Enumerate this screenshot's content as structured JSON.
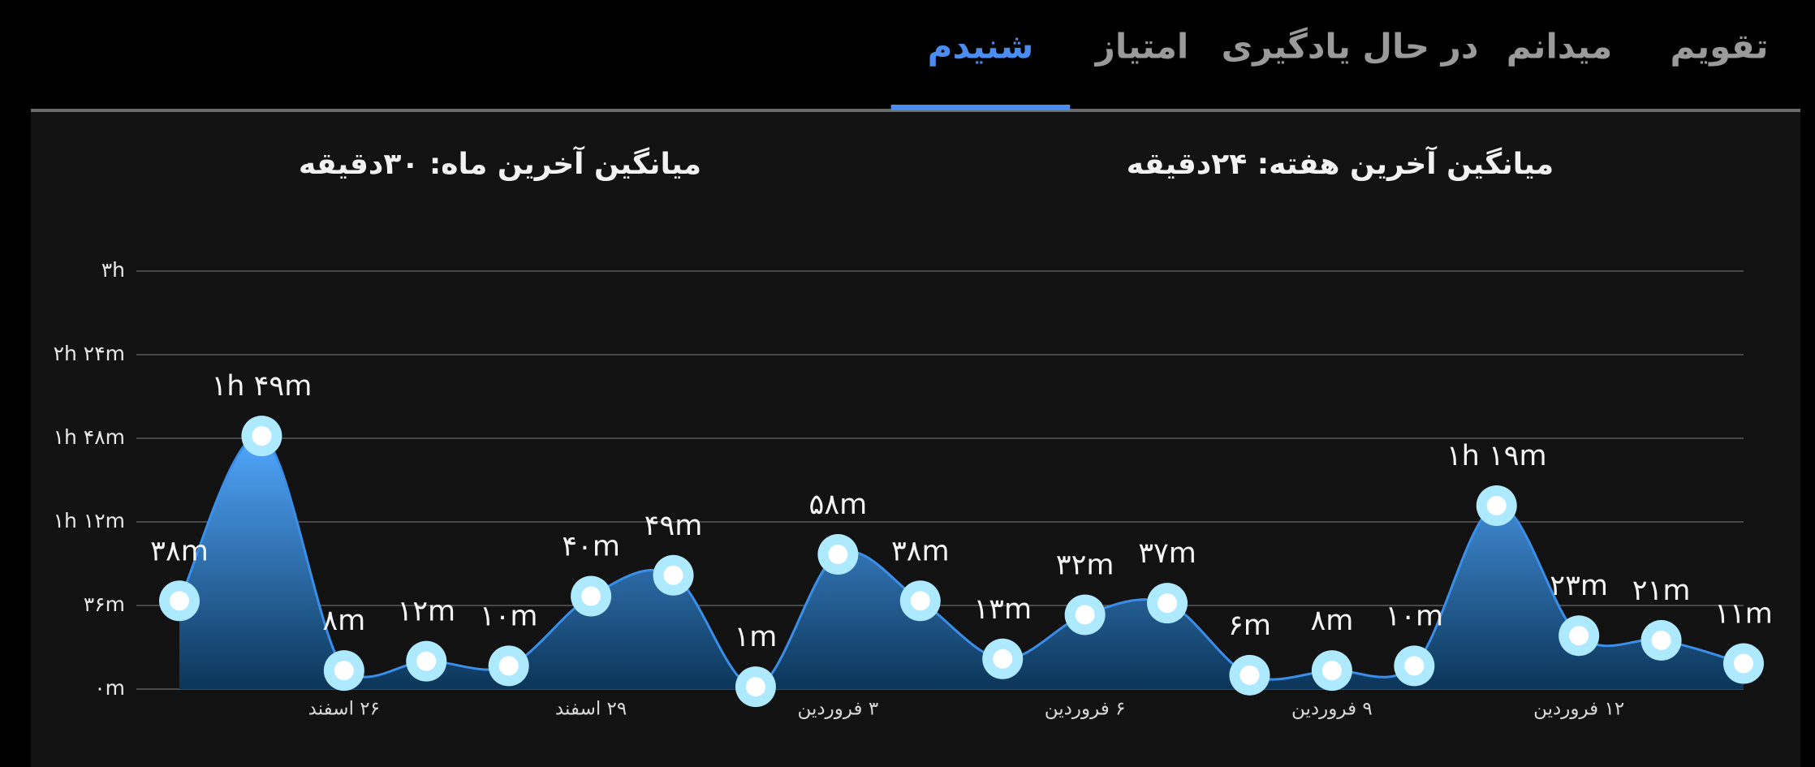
{
  "tabs": [
    "تقویم",
    "میدانم",
    "در حال یادگیری",
    "امتیاز",
    "شنیدم"
  ],
  "active_tab": 4,
  "summary": [
    "میانگین آخرین هفته: ۲۴دقیقه",
    "میانگین آخرین ماه: ۳۰دقیقه"
  ],
  "chart_data": {
    "type": "area",
    "categories": [
      null,
      null,
      "۲۶ اسفند",
      null,
      null,
      "۲۹ اسفند",
      null,
      null,
      "۳ فروردین",
      null,
      null,
      "۶ فروردین",
      null,
      null,
      "۹ فروردین",
      null,
      null,
      "۱۲ فروردین",
      null,
      null
    ],
    "values": [
      38,
      109,
      8,
      12,
      10,
      40,
      49,
      1,
      58,
      38,
      13,
      32,
      37,
      6,
      8,
      10,
      79,
      23,
      21,
      11
    ],
    "value_labels": [
      "۳۸m",
      "۱h ۴۹m",
      "۸m",
      "۱۲m",
      "۱۰m",
      "۴۰m",
      "۴۹m",
      "۱m",
      "۵۸m",
      "۳۸m",
      "۱۳m",
      "۳۲m",
      "۳۷m",
      "۶m",
      "۸m",
      "۱۰m",
      "۱h ۱۹m",
      "۲۳m",
      "۲۱m",
      "۱۱m"
    ],
    "color": "#3b8ee8",
    "ylim": [
      0,
      180
    ],
    "yticks": [
      {
        "value": 0,
        "label": "۰m"
      },
      {
        "value": 36,
        "label": "۳۶m"
      },
      {
        "value": 72,
        "label": "۱h ۱۲m"
      },
      {
        "value": 108,
        "label": "۱h ۴۸m"
      },
      {
        "value": 144,
        "label": "۲h ۲۴m"
      },
      {
        "value": 180,
        "label": "۳h"
      }
    ],
    "grid": true
  }
}
